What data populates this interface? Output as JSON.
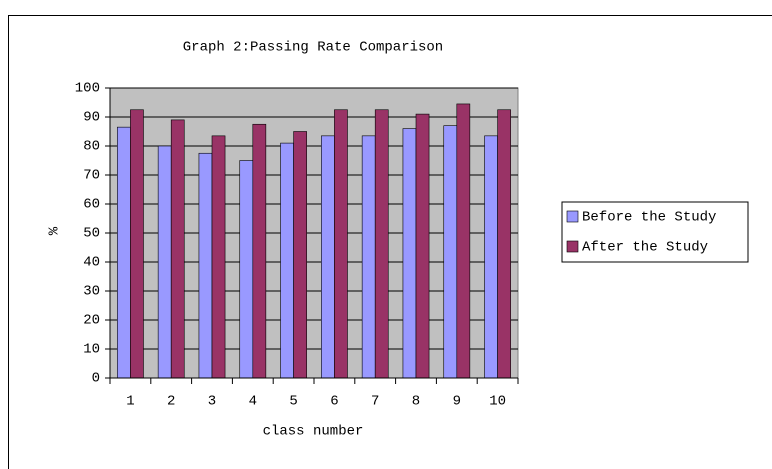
{
  "chart_data": {
    "type": "bar",
    "title": "Graph 2:Passing Rate Comparison",
    "x_label": "class number",
    "y_label": "%",
    "categories": [
      "1",
      "2",
      "3",
      "4",
      "5",
      "6",
      "7",
      "8",
      "9",
      "10"
    ],
    "series": [
      {
        "name": "Before the Study",
        "color": "#9999ff",
        "values": [
          86.5,
          80,
          77.5,
          75,
          81,
          83.5,
          83.5,
          86,
          87,
          83.5
        ]
      },
      {
        "name": "After the Study",
        "color": "#993366",
        "values": [
          92.5,
          89,
          83.5,
          87.5,
          85,
          92.5,
          92.5,
          91,
          94.5,
          92.5
        ]
      }
    ],
    "ylim": [
      0,
      100
    ],
    "yticks": [
      0,
      10,
      20,
      30,
      40,
      50,
      60,
      70,
      80,
      90,
      100
    ],
    "grid": true,
    "legend": "right"
  }
}
